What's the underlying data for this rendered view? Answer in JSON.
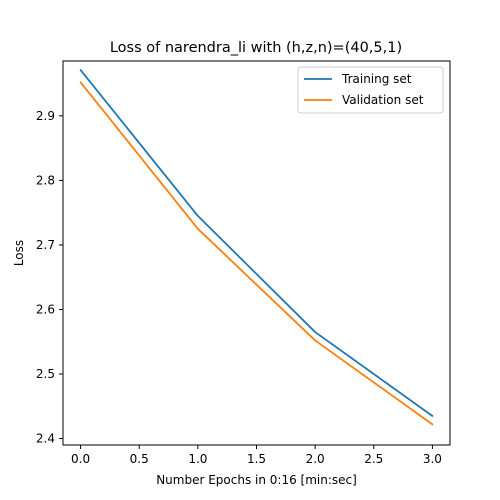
{
  "chart_data": {
    "type": "line",
    "title": "Loss of narendra_li with (h,z,n)=(40,5,1)",
    "xlabel": "Number Epochs in  0:16 [min:sec]",
    "ylabel": "Loss",
    "x": [
      0,
      1,
      2,
      3
    ],
    "xlim": [
      -0.15,
      3.15
    ],
    "ylim": [
      2.39,
      2.985
    ],
    "xticks": [
      0.0,
      0.5,
      1.0,
      1.5,
      2.0,
      2.5,
      3.0
    ],
    "xtick_labels": [
      "0.0",
      "0.5",
      "1.0",
      "1.5",
      "2.0",
      "2.5",
      "3.0"
    ],
    "yticks": [
      2.4,
      2.5,
      2.6,
      2.7,
      2.8,
      2.9
    ],
    "ytick_labels": [
      "2.4",
      "2.5",
      "2.6",
      "2.7",
      "2.8",
      "2.9"
    ],
    "grid": false,
    "legend_position": "top-right",
    "series": [
      {
        "name": "Training set",
        "color": "#1f77b4",
        "values": [
          2.971,
          2.745,
          2.565,
          2.435
        ]
      },
      {
        "name": "Validation set",
        "color": "#ff7f0e",
        "values": [
          2.952,
          2.725,
          2.552,
          2.422
        ]
      }
    ]
  }
}
